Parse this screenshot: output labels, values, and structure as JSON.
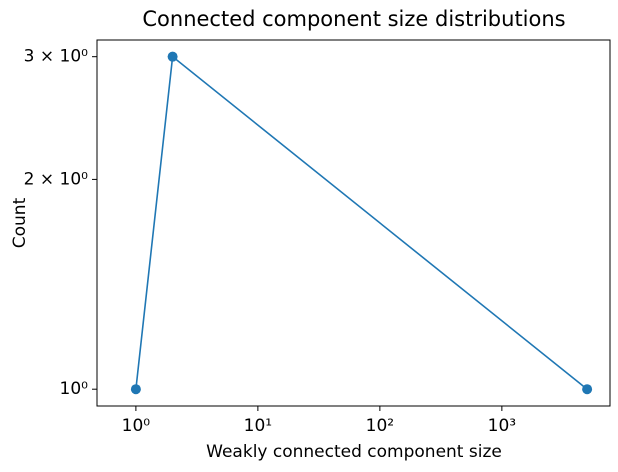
{
  "chart_data": {
    "type": "line",
    "title": "Connected component size distributions",
    "x_label": "Weakly connected component size",
    "y_label": "Count",
    "x": [
      1,
      2,
      5000
    ],
    "series": [
      {
        "name": "Count",
        "color": "#1f77b4",
        "values": [
          1,
          3,
          1
        ]
      }
    ],
    "xscale": "log",
    "yscale": "log",
    "xlim": [
      0.48,
      7700
    ],
    "ylim": [
      0.946,
      3.17
    ],
    "xticks": [
      {
        "value": 1,
        "label": "10⁰"
      },
      {
        "value": 10,
        "label": "10¹"
      },
      {
        "value": 100,
        "label": "10²"
      },
      {
        "value": 1000,
        "label": "10³"
      }
    ],
    "yticks": [
      {
        "value": 1,
        "label": "10⁰"
      },
      {
        "value": 2,
        "label": "2 × 10⁰"
      },
      {
        "value": 3,
        "label": "3 × 10⁰"
      }
    ],
    "grid": false,
    "markers": true
  }
}
